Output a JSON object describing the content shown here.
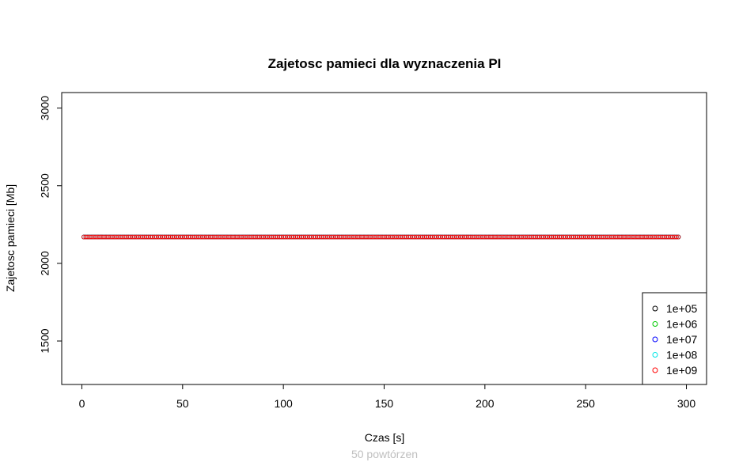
{
  "chart_data": {
    "type": "scatter",
    "title": "Zajetosc pamieci dla wyznaczenia PI",
    "xlabel": "Czas [s]",
    "ylabel": "Zajetosc pamieci [Mb]",
    "subtitle": "50 powtórzen",
    "subtitle_color": "#bfbfbf",
    "xlim": [
      -10,
      310
    ],
    "ylim": [
      1220,
      3100
    ],
    "x_ticks": [
      0,
      50,
      100,
      150,
      200,
      250,
      300
    ],
    "y_ticks": [
      1500,
      2000,
      2500,
      3000
    ],
    "x_tick_labels": [
      "0",
      "50",
      "100",
      "150",
      "200",
      "250",
      "300"
    ],
    "y_tick_labels": [
      "1500",
      "2000",
      "2500",
      "3000"
    ],
    "marker": "open-circle",
    "point_spacing": 1,
    "grid": false,
    "legend_position": "bottom-right",
    "series": [
      {
        "name": "1e+05",
        "color": "#000000",
        "x_range": [
          1,
          296
        ],
        "y": 2170
      },
      {
        "name": "1e+06",
        "color": "#00cc00",
        "x_range": [
          1,
          296
        ],
        "y": 2170
      },
      {
        "name": "1e+07",
        "color": "#0000ff",
        "x_range": [
          1,
          296
        ],
        "y": 2170
      },
      {
        "name": "1e+08",
        "color": "#00e5e5",
        "x_range": [
          1,
          296
        ],
        "y": 2170
      },
      {
        "name": "1e+09",
        "color": "#ff0000",
        "x_range": [
          1,
          296
        ],
        "y": 2170
      }
    ]
  }
}
